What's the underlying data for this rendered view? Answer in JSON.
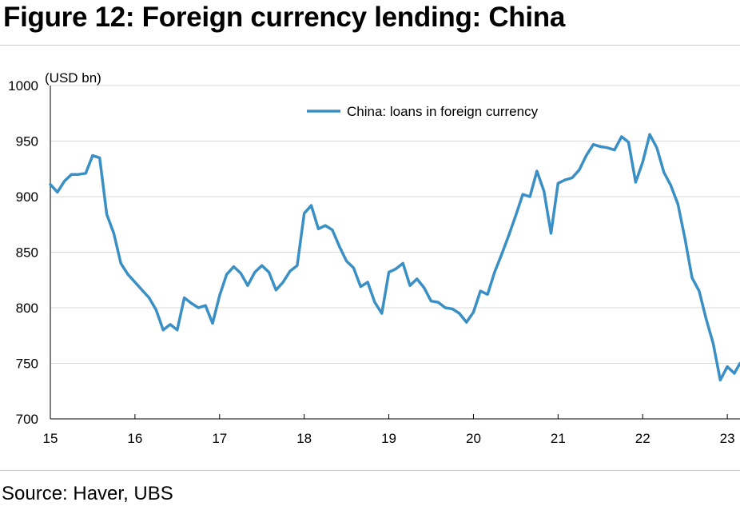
{
  "title": "Figure 12: Foreign currency lending: China",
  "source": "Source: Haver, UBS",
  "colors": {
    "series": "#3a8fc4",
    "grid": "#d9d9d9",
    "axis": "#000000"
  },
  "chart_data": {
    "type": "line",
    "unit_label": "(USD bn)",
    "ylim": [
      700,
      1000
    ],
    "yticks": [
      700,
      750,
      800,
      850,
      900,
      950,
      1000
    ],
    "xlim": [
      15,
      23.15
    ],
    "xticks": [
      15,
      16,
      17,
      18,
      19,
      20,
      21,
      22,
      23
    ],
    "xtick_labels": [
      "15",
      "16",
      "17",
      "18",
      "19",
      "20",
      "21",
      "22",
      "23"
    ],
    "grid": "horizontal",
    "legend_position": "top-center",
    "series": [
      {
        "name": "China: loans in foreign currency",
        "color": "#3a8fc4",
        "x": [
          15.0,
          15.083,
          15.167,
          15.25,
          15.333,
          15.417,
          15.5,
          15.583,
          15.667,
          15.75,
          15.833,
          15.917,
          16.0,
          16.083,
          16.167,
          16.25,
          16.333,
          16.417,
          16.5,
          16.583,
          16.667,
          16.75,
          16.833,
          16.917,
          17.0,
          17.083,
          17.167,
          17.25,
          17.333,
          17.417,
          17.5,
          17.583,
          17.667,
          17.75,
          17.833,
          17.917,
          18.0,
          18.083,
          18.167,
          18.25,
          18.333,
          18.417,
          18.5,
          18.583,
          18.667,
          18.75,
          18.833,
          18.917,
          19.0,
          19.083,
          19.167,
          19.25,
          19.333,
          19.417,
          19.5,
          19.583,
          19.667,
          19.75,
          19.833,
          19.917,
          20.0,
          20.083,
          20.167,
          20.25,
          20.333,
          20.417,
          20.5,
          20.583,
          20.667,
          20.75,
          20.833,
          20.917,
          21.0,
          21.083,
          21.167,
          21.25,
          21.333,
          21.417,
          21.5,
          21.583,
          21.667,
          21.75,
          21.833,
          21.917,
          22.0,
          22.083,
          22.167,
          22.25,
          22.333,
          22.417,
          22.5,
          22.583,
          22.667,
          22.75,
          22.833,
          22.917,
          23.0,
          23.083,
          23.15
        ],
        "values": [
          911,
          904,
          914,
          920,
          920,
          921,
          937,
          935,
          884,
          867,
          840,
          830,
          823,
          816,
          809,
          798,
          780,
          785,
          780,
          809,
          804,
          800,
          802,
          786,
          811,
          830,
          837,
          831,
          820,
          832,
          838,
          832,
          816,
          823,
          833,
          838,
          885,
          892,
          871,
          874,
          870,
          855,
          842,
          836,
          819,
          823,
          805,
          795,
          832,
          835,
          840,
          820,
          826,
          818,
          806,
          805,
          800,
          799,
          795,
          787,
          796,
          815,
          812,
          832,
          848,
          865,
          883,
          902,
          900,
          923,
          905,
          867,
          912,
          915,
          917,
          924,
          937,
          947,
          945,
          944,
          942,
          954,
          949,
          913,
          931,
          956,
          944,
          922,
          910,
          893,
          862,
          827,
          815,
          790,
          768,
          735,
          747,
          741,
          750
        ]
      }
    ]
  }
}
